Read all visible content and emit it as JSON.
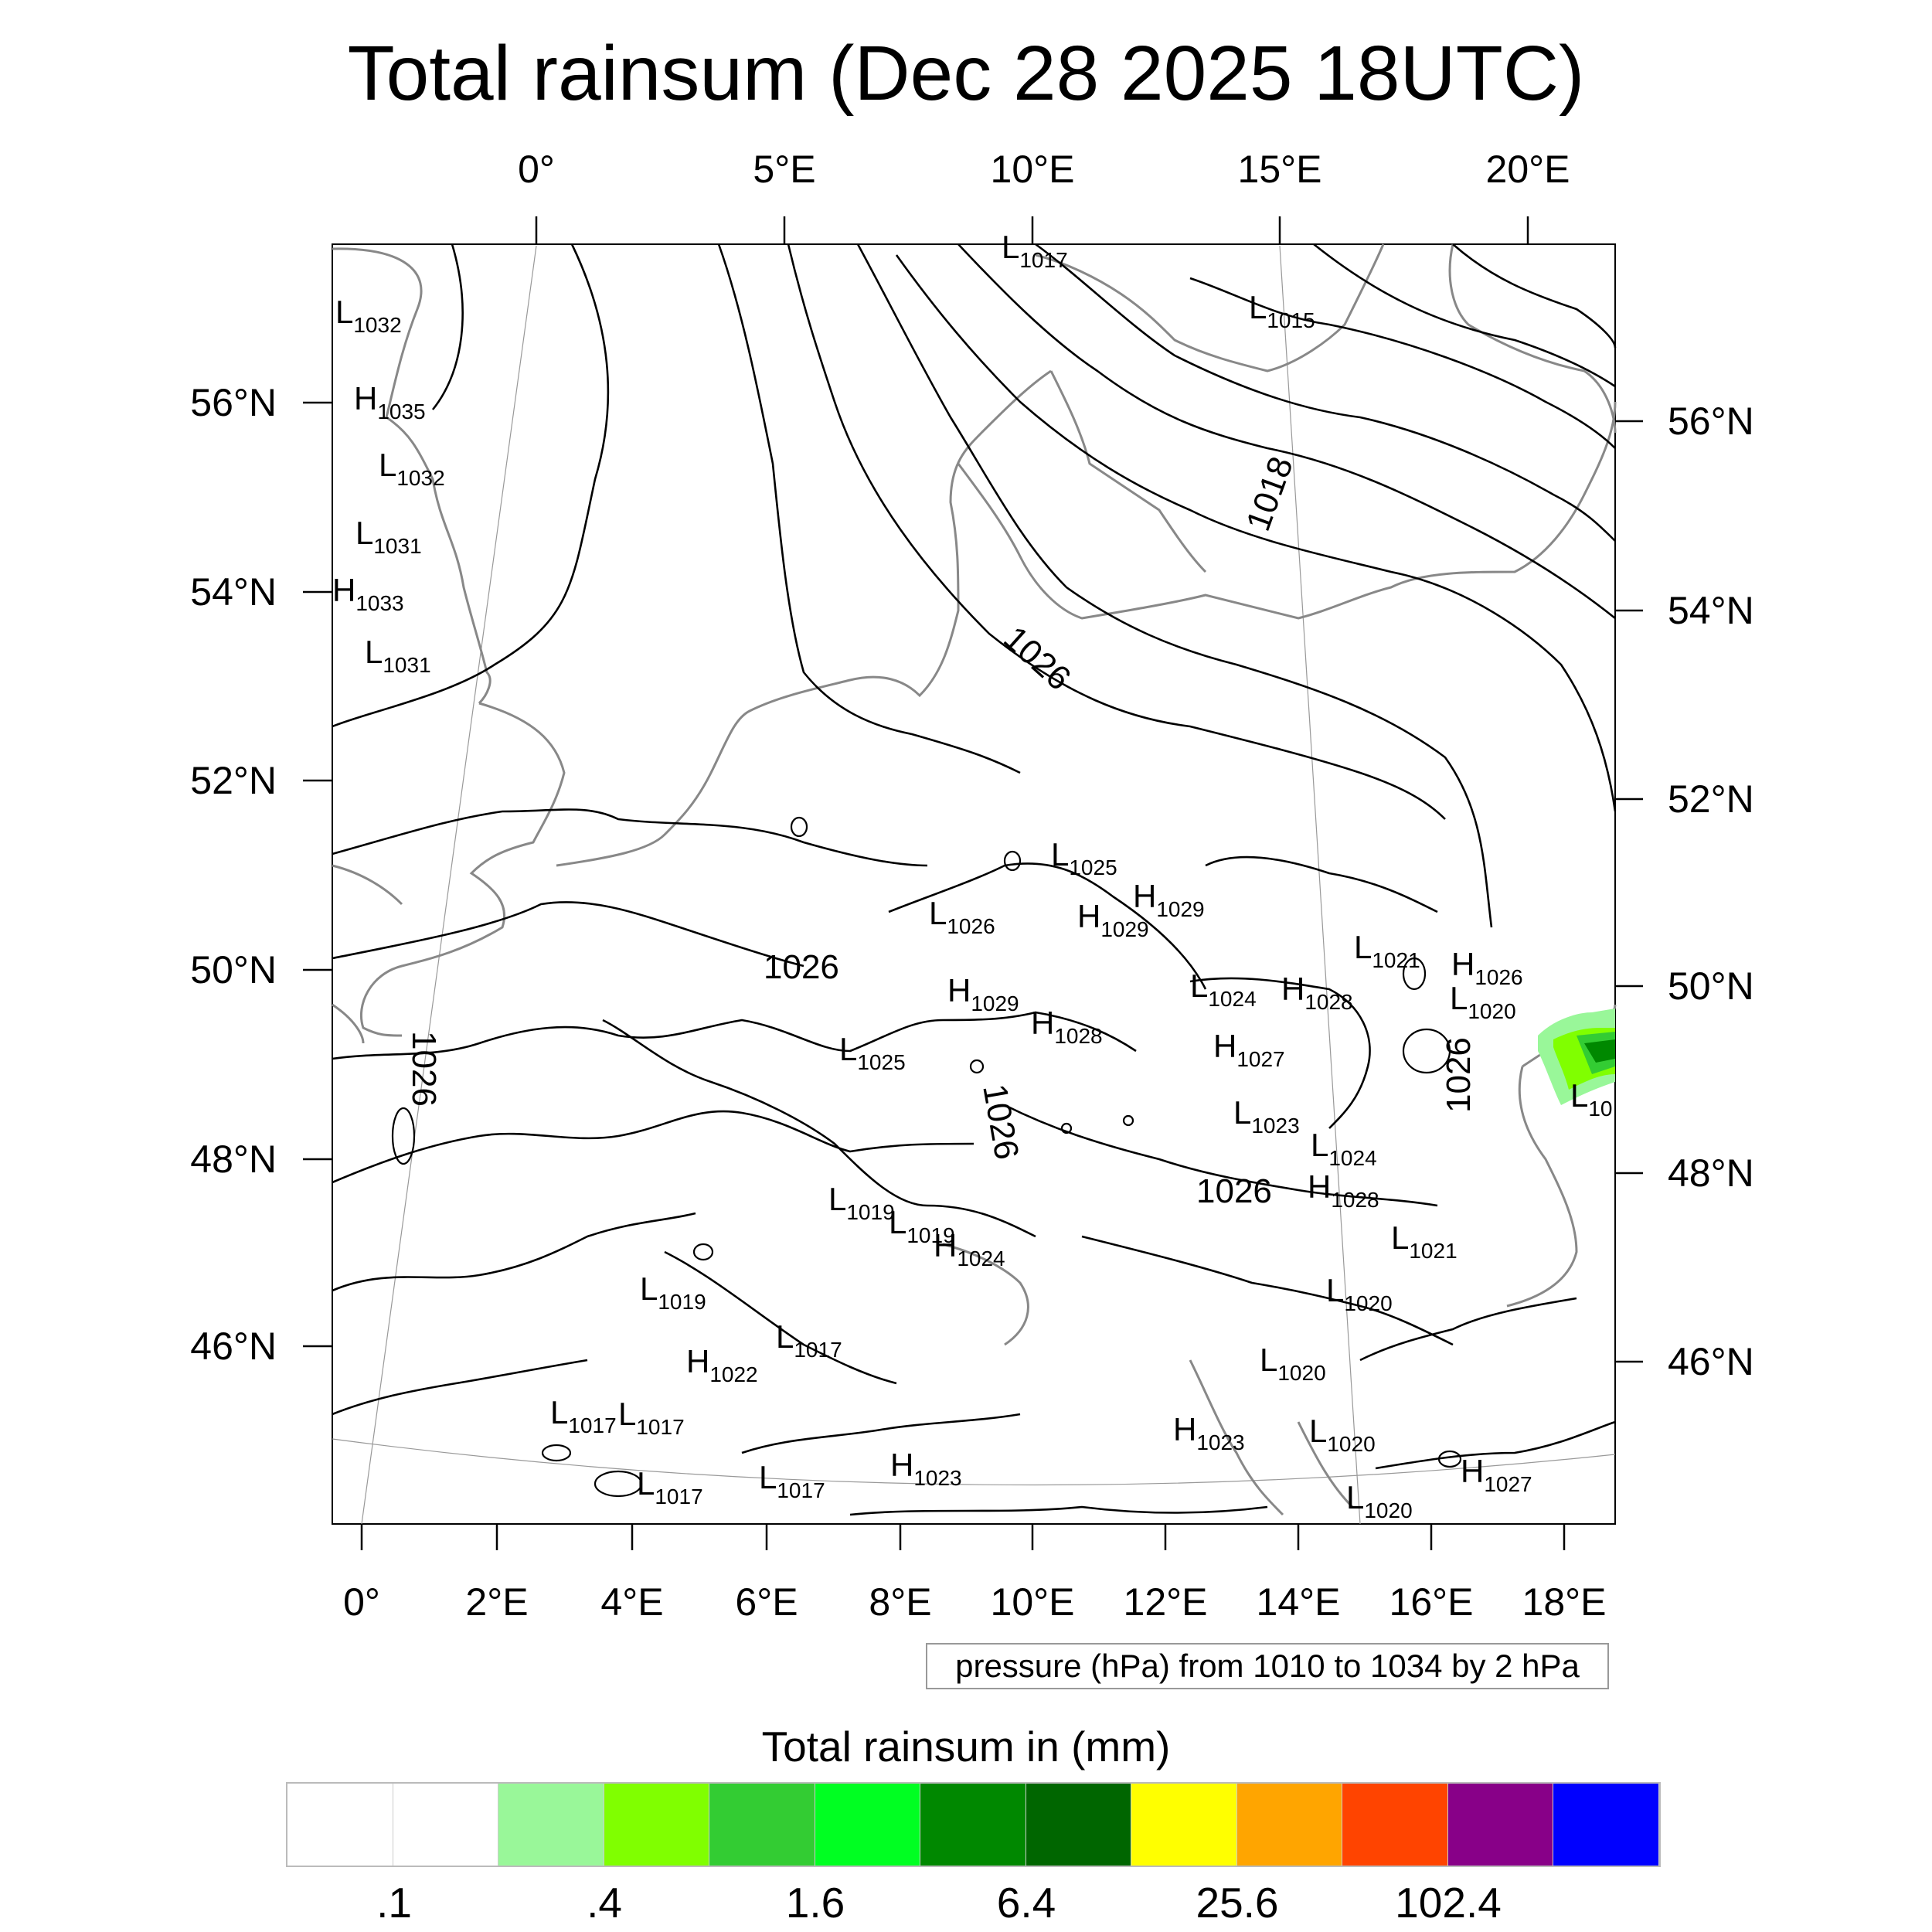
{
  "title": "Total rainsum (Dec 28 2025 18UTC)",
  "map": {
    "top_lon_labels": [
      "0°",
      "5°E",
      "10°E",
      "15°E",
      "20°E"
    ],
    "bottom_lon_labels": [
      "0°",
      "2°E",
      "4°E",
      "6°E",
      "8°E",
      "10°E",
      "12°E",
      "14°E",
      "16°E",
      "18°E"
    ],
    "left_lat_labels": [
      "56°N",
      "54°N",
      "52°N",
      "50°N",
      "48°N",
      "46°N"
    ],
    "right_lat_labels": [
      "56°N",
      "54°N",
      "52°N",
      "50°N",
      "48°N",
      "46°N"
    ],
    "isobar_labels": [
      "1018",
      "1026",
      "1026",
      "1026",
      "1026",
      "1026",
      "1026"
    ],
    "pressure_centers": [
      {
        "type": "L",
        "value": "1032"
      },
      {
        "type": "H",
        "value": "1035"
      },
      {
        "type": "L",
        "value": "1032"
      },
      {
        "type": "L",
        "value": "1031"
      },
      {
        "type": "H",
        "value": "1033"
      },
      {
        "type": "L",
        "value": "1031"
      },
      {
        "type": "L",
        "value": "1017"
      },
      {
        "type": "L",
        "value": "1015"
      },
      {
        "type": "L",
        "value": "1025"
      },
      {
        "type": "H",
        "value": "1029"
      },
      {
        "type": "L",
        "value": "1026"
      },
      {
        "type": "H",
        "value": "1029"
      },
      {
        "type": "L",
        "value": "1021"
      },
      {
        "type": "H",
        "value": "1026"
      },
      {
        "type": "L",
        "value": "1020"
      },
      {
        "type": "H",
        "value": "1029"
      },
      {
        "type": "L",
        "value": "1024"
      },
      {
        "type": "H",
        "value": "1028"
      },
      {
        "type": "H",
        "value": "1028"
      },
      {
        "type": "L",
        "value": "1025"
      },
      {
        "type": "H",
        "value": "1027"
      },
      {
        "type": "L",
        "value": "1023"
      },
      {
        "type": "L",
        "value": "1024"
      },
      {
        "type": "H",
        "value": "1028"
      },
      {
        "type": "L",
        "value": "1019"
      },
      {
        "type": "L",
        "value": "1019"
      },
      {
        "type": "H",
        "value": "1024"
      },
      {
        "type": "L",
        "value": "1021"
      },
      {
        "type": "L",
        "value": "1019"
      },
      {
        "type": "L",
        "value": "1020"
      },
      {
        "type": "L",
        "value": "1017"
      },
      {
        "type": "H",
        "value": "1022"
      },
      {
        "type": "L",
        "value": "1020"
      },
      {
        "type": "L",
        "value": "1017"
      },
      {
        "type": "L",
        "value": "1017"
      },
      {
        "type": "H",
        "value": "1023"
      },
      {
        "type": "L",
        "value": "1020"
      },
      {
        "type": "L",
        "value": "1017"
      },
      {
        "type": "L",
        "value": "1017"
      },
      {
        "type": "H",
        "value": "1023"
      },
      {
        "type": "H",
        "value": "1027"
      },
      {
        "type": "L",
        "value": "1020"
      },
      {
        "type": "L",
        "value": "10"
      }
    ],
    "contour_note": "pressure (hPa) from 1010 to 1034 by 2 hPa"
  },
  "legend": {
    "title": "Total rainsum in (mm)",
    "colors": [
      "#ffffff",
      "#ffffff",
      "#99f799",
      "#80ff00",
      "#33cc33",
      "#00ff22",
      "#008800",
      "#006600",
      "#ffff00",
      "#ffa500",
      "#ff4400",
      "#880088",
      "#0000ff"
    ],
    "tick_labels": [
      ".1",
      ".4",
      "1.6",
      "6.4",
      "25.6",
      "102.4"
    ]
  }
}
